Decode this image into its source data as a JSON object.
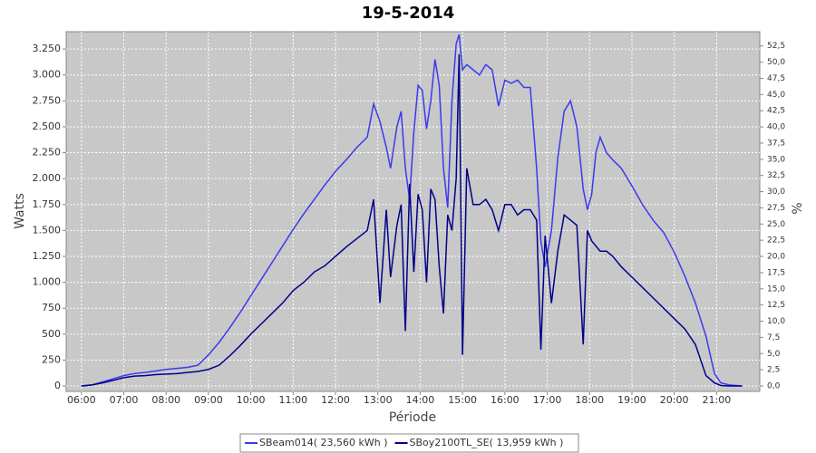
{
  "chart_data": {
    "type": "line",
    "title": "19-5-2014",
    "xlabel": "Période",
    "ylabel": "Watts",
    "y2label": "%",
    "x": [
      6.0,
      6.25,
      6.5,
      6.75,
      7.0,
      7.25,
      7.5,
      7.75,
      8.0,
      8.25,
      8.5,
      8.75,
      9.0,
      9.25,
      9.5,
      9.75,
      10.0,
      10.25,
      10.5,
      10.75,
      11.0,
      11.25,
      11.5,
      11.75,
      12.0,
      12.25,
      12.5,
      12.75,
      12.9,
      13.05,
      13.2,
      13.3,
      13.45,
      13.55,
      13.65,
      13.75,
      13.85,
      13.95,
      14.05,
      14.15,
      14.25,
      14.35,
      14.45,
      14.55,
      14.65,
      14.75,
      14.85,
      14.92,
      15.0,
      15.1,
      15.25,
      15.4,
      15.55,
      15.7,
      15.85,
      16.0,
      16.15,
      16.3,
      16.45,
      16.6,
      16.75,
      16.85,
      16.95,
      17.1,
      17.25,
      17.4,
      17.55,
      17.7,
      17.85,
      17.95,
      18.05,
      18.15,
      18.25,
      18.4,
      18.55,
      18.75,
      19.0,
      19.25,
      19.5,
      19.75,
      20.0,
      20.25,
      20.5,
      20.75,
      20.95,
      21.1,
      21.3,
      21.6
    ],
    "series": [
      {
        "name": "SBeam014( 23,560 kWh )",
        "color": "#3a3af0",
        "values": [
          0,
          10,
          40,
          70,
          100,
          120,
          130,
          145,
          160,
          170,
          180,
          200,
          300,
          420,
          560,
          710,
          870,
          1030,
          1190,
          1350,
          1510,
          1660,
          1800,
          1940,
          2070,
          2180,
          2300,
          2400,
          2720,
          2550,
          2300,
          2100,
          2500,
          2650,
          2100,
          1800,
          2450,
          2900,
          2850,
          2480,
          2750,
          3150,
          2900,
          2100,
          1720,
          2750,
          3300,
          3390,
          3050,
          3100,
          3050,
          3000,
          3100,
          3050,
          2700,
          2950,
          2920,
          2950,
          2880,
          2880,
          2100,
          1400,
          1150,
          1500,
          2200,
          2650,
          2750,
          2500,
          1900,
          1700,
          1850,
          2250,
          2400,
          2250,
          2180,
          2100,
          1930,
          1750,
          1600,
          1480,
          1290,
          1060,
          800,
          480,
          120,
          30,
          10,
          0
        ]
      },
      {
        "name": "SBoy2100TL_SE( 13,959 kWh )",
        "color": "#00008c",
        "values": [
          0,
          10,
          30,
          55,
          80,
          95,
          100,
          110,
          115,
          120,
          130,
          140,
          160,
          200,
          290,
          390,
          500,
          600,
          700,
          800,
          920,
          1000,
          1100,
          1160,
          1250,
          1340,
          1420,
          1500,
          1800,
          800,
          1700,
          1050,
          1550,
          1750,
          530,
          1950,
          1100,
          1850,
          1700,
          1000,
          1900,
          1800,
          1150,
          700,
          1650,
          1500,
          2000,
          3200,
          300,
          2100,
          1750,
          1750,
          1800,
          1700,
          1500,
          1750,
          1750,
          1650,
          1700,
          1700,
          1600,
          350,
          1450,
          800,
          1300,
          1650,
          1600,
          1550,
          400,
          1500,
          1400,
          1350,
          1300,
          1300,
          1250,
          1150,
          1050,
          950,
          850,
          750,
          650,
          550,
          400,
          100,
          30,
          5,
          0,
          0
        ]
      }
    ],
    "xlim": [
      5.64,
      22.02
    ],
    "xticks": [
      {
        "value": 6,
        "label": "06:00"
      },
      {
        "value": 7,
        "label": "07:00"
      },
      {
        "value": 8,
        "label": "08:00"
      },
      {
        "value": 9,
        "label": "09:00"
      },
      {
        "value": 10,
        "label": "10:00"
      },
      {
        "value": 11,
        "label": "11:00"
      },
      {
        "value": 12,
        "label": "12:00"
      },
      {
        "value": 13,
        "label": "13:00"
      },
      {
        "value": 14,
        "label": "14:00"
      },
      {
        "value": 15,
        "label": "15:00"
      },
      {
        "value": 16,
        "label": "16:00"
      },
      {
        "value": 17,
        "label": "17:00"
      },
      {
        "value": 18,
        "label": "18:00"
      },
      {
        "value": 19,
        "label": "19:00"
      },
      {
        "value": 20,
        "label": "20:00"
      },
      {
        "value": 21,
        "label": "21:00"
      }
    ],
    "ylim": [
      -52,
      3417
    ],
    "yticks": [
      0,
      250,
      500,
      750,
      {
        "value": 1000,
        "label": "1.000"
      },
      {
        "value": 1250,
        "label": "1.250"
      },
      {
        "value": 1500,
        "label": "1.500"
      },
      {
        "value": 1750,
        "label": "1.750"
      },
      {
        "value": 2000,
        "label": "2.000"
      },
      {
        "value": 2250,
        "label": "2.250"
      },
      {
        "value": 2500,
        "label": "2.500"
      },
      {
        "value": 2750,
        "label": "2.750"
      },
      {
        "value": 3000,
        "label": "3.000"
      },
      {
        "value": 3250,
        "label": "3.250"
      }
    ],
    "y2lim": [
      -0.84,
      54.7
    ],
    "y2ticks": [
      {
        "value": 0,
        "label": "0,0"
      },
      {
        "value": 2.5,
        "label": "2,5"
      },
      {
        "value": 5,
        "label": "5,0"
      },
      {
        "value": 7.5,
        "label": "7,5"
      },
      {
        "value": 10,
        "label": "10,0"
      },
      {
        "value": 12.5,
        "label": "12,5"
      },
      {
        "value": 15,
        "label": "15,0"
      },
      {
        "value": 17.5,
        "label": "17,5"
      },
      {
        "value": 20,
        "label": "20,0"
      },
      {
        "value": 22.5,
        "label": "22,5"
      },
      {
        "value": 25,
        "label": "25,0"
      },
      {
        "value": 27.5,
        "label": "27,5"
      },
      {
        "value": 30,
        "label": "30,0"
      },
      {
        "value": 32.5,
        "label": "32,5"
      },
      {
        "value": 35,
        "label": "35,0"
      },
      {
        "value": 37.5,
        "label": "37,5"
      },
      {
        "value": 40,
        "label": "40,0"
      },
      {
        "value": 42.5,
        "label": "42,5"
      },
      {
        "value": 45,
        "label": "45,0"
      },
      {
        "value": 47.5,
        "label": "47,5"
      },
      {
        "value": 50,
        "label": "50,0"
      },
      {
        "value": 52.5,
        "label": "52,5"
      }
    ],
    "grid": true
  }
}
